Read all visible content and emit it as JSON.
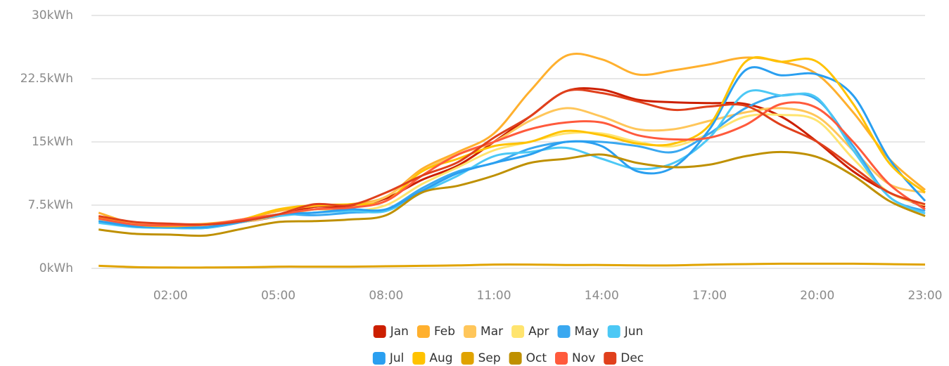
{
  "chart_data": {
    "type": "line",
    "x": [
      0,
      1,
      2,
      3,
      4,
      5,
      6,
      7,
      8,
      9,
      10,
      11,
      12,
      13,
      14,
      15,
      16,
      17,
      18,
      19,
      20,
      21,
      22,
      23
    ],
    "xlim": [
      -0.2,
      23
    ],
    "xticks": [
      {
        "value": 2,
        "label": "02:00"
      },
      {
        "value": 5,
        "label": "05:00"
      },
      {
        "value": 8,
        "label": "08:00"
      },
      {
        "value": 11,
        "label": "11:00"
      },
      {
        "value": 14,
        "label": "14:00"
      },
      {
        "value": 17,
        "label": "17:00"
      },
      {
        "value": 20,
        "label": "20:00"
      },
      {
        "value": 23,
        "label": "23:00"
      }
    ],
    "ylim": [
      0,
      30
    ],
    "yticks": [
      {
        "value": 0,
        "label": "0kWh"
      },
      {
        "value": 7.5,
        "label": "7.5kWh"
      },
      {
        "value": 15,
        "label": "15kWh"
      },
      {
        "value": 22.5,
        "label": "22.5kWh"
      },
      {
        "value": 30,
        "label": "30kWh"
      }
    ],
    "grid": true,
    "legend": "bottom",
    "series": [
      {
        "name": "Jan",
        "color": "#cc1f00",
        "values": [
          6.0,
          5.3,
          5.2,
          5.2,
          5.5,
          6.2,
          7.3,
          7.3,
          8.3,
          10.5,
          12.2,
          15.0,
          18.0,
          21.0,
          21.2,
          20.0,
          19.7,
          19.6,
          19.5,
          18.0,
          15.0,
          11.5,
          9.0,
          7.3
        ]
      },
      {
        "name": "Feb",
        "color": "#ffb02e",
        "values": [
          6.6,
          5.3,
          5.2,
          5.3,
          5.8,
          6.8,
          7.4,
          7.6,
          8.5,
          11.8,
          13.8,
          16.0,
          21.0,
          25.2,
          24.8,
          23.0,
          23.5,
          24.2,
          25.0,
          24.5,
          23.0,
          18.5,
          13.0,
          9.3
        ]
      },
      {
        "name": "Mar",
        "color": "#ffc65a",
        "values": [
          6.0,
          5.3,
          5.2,
          5.1,
          5.5,
          6.2,
          7.0,
          7.2,
          8.5,
          11.5,
          13.5,
          15.0,
          17.5,
          19.0,
          18.0,
          16.5,
          16.5,
          17.5,
          18.5,
          19.0,
          18.0,
          14.0,
          10.0,
          9.0
        ]
      },
      {
        "name": "Apr",
        "color": "#ffe46e",
        "values": [
          5.8,
          5.0,
          5.0,
          5.1,
          5.5,
          6.3,
          7.0,
          6.8,
          7.5,
          10.0,
          12.0,
          14.0,
          15.0,
          16.0,
          16.0,
          15.0,
          14.5,
          16.0,
          18.0,
          18.2,
          17.5,
          13.0,
          9.0,
          7.5
        ]
      },
      {
        "name": "May",
        "color": "#3aa8f0",
        "values": [
          5.6,
          5.0,
          4.8,
          4.8,
          5.5,
          6.4,
          6.3,
          6.6,
          7.0,
          9.5,
          11.5,
          12.5,
          14.2,
          15.0,
          15.0,
          14.5,
          13.8,
          16.0,
          19.0,
          20.5,
          20.0,
          14.5,
          8.5,
          6.8
        ]
      },
      {
        "name": "Jun",
        "color": "#4cc8f5",
        "values": [
          5.4,
          4.9,
          4.8,
          4.8,
          5.6,
          6.2,
          6.6,
          6.8,
          6.8,
          9.0,
          11.0,
          13.3,
          13.8,
          14.3,
          13.0,
          11.8,
          12.5,
          15.5,
          20.8,
          20.5,
          20.2,
          14.0,
          8.5,
          6.5
        ]
      },
      {
        "name": "Jul",
        "color": "#2a9ff0",
        "values": [
          5.6,
          5.0,
          4.9,
          4.9,
          5.6,
          6.4,
          6.6,
          7.0,
          7.0,
          9.2,
          11.3,
          12.5,
          13.5,
          15.0,
          14.5,
          11.5,
          12.0,
          16.5,
          23.5,
          22.9,
          23.0,
          20.5,
          13.0,
          8.0
        ]
      },
      {
        "name": "Aug",
        "color": "#ffc200",
        "values": [
          6.0,
          5.2,
          5.0,
          5.2,
          5.8,
          7.0,
          7.5,
          7.6,
          8.0,
          11.5,
          13.0,
          14.5,
          15.0,
          16.3,
          15.8,
          14.8,
          14.8,
          17.0,
          24.5,
          24.5,
          24.5,
          19.5,
          12.5,
          9.0
        ]
      },
      {
        "name": "Sep",
        "color": "#e0a300",
        "values": [
          0.3,
          0.15,
          0.1,
          0.1,
          0.12,
          0.2,
          0.2,
          0.2,
          0.25,
          0.3,
          0.35,
          0.45,
          0.45,
          0.4,
          0.4,
          0.35,
          0.35,
          0.45,
          0.5,
          0.55,
          0.55,
          0.55,
          0.5,
          0.45
        ]
      },
      {
        "name": "Oct",
        "color": "#bf9000",
        "values": [
          4.6,
          4.1,
          4.0,
          3.9,
          4.7,
          5.5,
          5.6,
          5.8,
          6.3,
          9.0,
          9.8,
          11.0,
          12.5,
          13.0,
          13.5,
          12.5,
          12.0,
          12.3,
          13.3,
          13.8,
          13.2,
          11.0,
          8.0,
          6.2
        ]
      },
      {
        "name": "Nov",
        "color": "#ff5a3c",
        "values": [
          5.9,
          5.2,
          5.1,
          5.2,
          5.8,
          6.4,
          7.0,
          7.2,
          8.0,
          11.0,
          13.5,
          15.0,
          16.5,
          17.3,
          17.3,
          15.8,
          15.3,
          15.5,
          17.0,
          19.5,
          19.0,
          15.0,
          10.0,
          7.0
        ]
      },
      {
        "name": "Dec",
        "color": "#e0401c",
        "values": [
          6.2,
          5.5,
          5.3,
          5.2,
          5.6,
          6.4,
          7.6,
          7.5,
          9.0,
          11.0,
          12.6,
          15.5,
          18.0,
          21.0,
          20.8,
          19.8,
          18.8,
          19.2,
          19.3,
          17.0,
          15.0,
          12.0,
          9.0,
          7.6
        ]
      }
    ]
  }
}
